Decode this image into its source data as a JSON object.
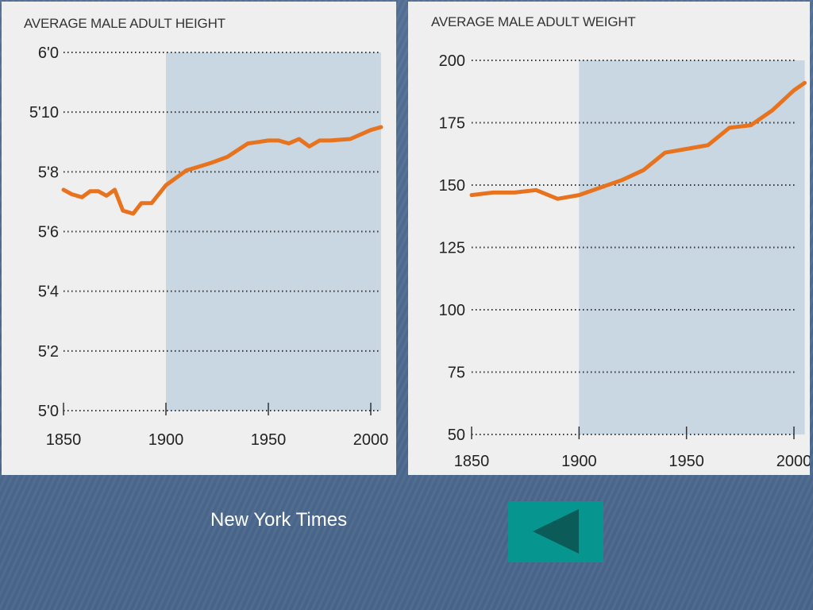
{
  "chart_data": [
    {
      "type": "line",
      "title": "AVERAGE MALE ADULT HEIGHT",
      "xlabel": "",
      "ylabel": "",
      "xlim": [
        1850,
        2005
      ],
      "ylim": [
        60,
        72
      ],
      "x_ticks": [
        1850,
        1900,
        1950,
        2000
      ],
      "x_tick_labels": [
        "1850",
        "1900",
        "1950",
        "2000"
      ],
      "y_ticks": [
        60,
        62,
        64,
        66,
        68,
        70,
        72
      ],
      "y_tick_labels": [
        "5'0",
        "5'2",
        "5'4",
        "5'6",
        "5'8",
        "5'10",
        "6'0"
      ],
      "shaded_region": [
        1900,
        2005
      ],
      "grid": "horizontal dotted",
      "series": [
        {
          "color": "#e8731e",
          "x": [
            1850,
            1854,
            1859,
            1863,
            1867,
            1871,
            1875,
            1879,
            1884,
            1888,
            1893,
            1900,
            1905,
            1910,
            1915,
            1922,
            1930,
            1940,
            1945,
            1950,
            1955,
            1960,
            1965,
            1970,
            1975,
            1980,
            1990,
            2000,
            2005
          ],
          "y": [
            67.4,
            67.25,
            67.15,
            67.35,
            67.35,
            67.2,
            67.4,
            66.7,
            66.6,
            66.95,
            66.95,
            67.55,
            67.8,
            68.05,
            68.15,
            68.3,
            68.5,
            68.95,
            69.0,
            69.05,
            69.05,
            68.95,
            69.1,
            68.85,
            69.05,
            69.05,
            69.1,
            69.4,
            69.5
          ]
        }
      ]
    },
    {
      "type": "line",
      "title": "AVERAGE MALE ADULT WEIGHT",
      "xlabel": "",
      "ylabel": "",
      "xlim": [
        1850,
        2005
      ],
      "ylim": [
        50,
        200
      ],
      "x_ticks": [
        1850,
        1900,
        1950,
        2000
      ],
      "x_tick_labels": [
        "1850",
        "1900",
        "1950",
        "2000"
      ],
      "y_ticks": [
        50,
        75,
        100,
        125,
        150,
        175,
        200
      ],
      "y_tick_labels": [
        "50",
        "75",
        "100",
        "125",
        "150",
        "175",
        "200"
      ],
      "shaded_region": [
        1900,
        2005
      ],
      "grid": "horizontal dotted",
      "series": [
        {
          "color": "#e8731e",
          "x": [
            1850,
            1860,
            1870,
            1880,
            1890,
            1900,
            1910,
            1920,
            1930,
            1940,
            1950,
            1960,
            1970,
            1980,
            1990,
            2000,
            2005
          ],
          "y": [
            146,
            147,
            147,
            148,
            144.5,
            146,
            149,
            152,
            156,
            163,
            164.5,
            166,
            173,
            174,
            180,
            188,
            191
          ]
        }
      ]
    }
  ],
  "footer": {
    "credit": "New York Times"
  },
  "nav": {
    "back_icon": "left-triangle-icon",
    "background_color": "#06968f",
    "icon_color": "#0b5b58"
  }
}
